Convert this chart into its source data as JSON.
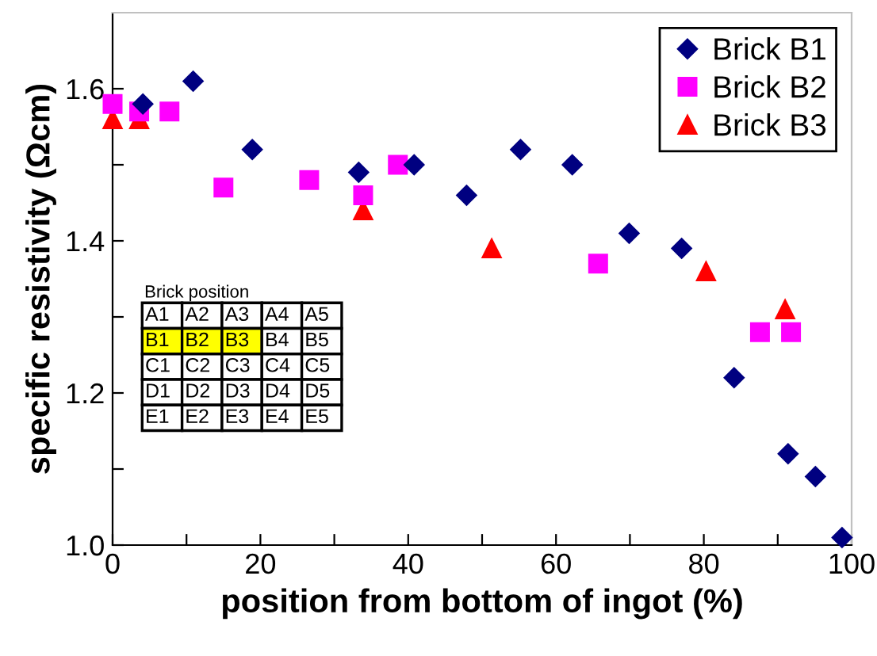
{
  "chart_data": {
    "type": "scatter",
    "xlabel": "position from bottom of ingot (%)",
    "ylabel": "specific resistivity (Ωcm)",
    "series": [
      {
        "name": "Brick B1",
        "color": "#000080",
        "marker": "diamond",
        "x": [
          4.1,
          10.9,
          18.9,
          33.3,
          40.8,
          47.9,
          55.2,
          62.2,
          69.9,
          77.0,
          84.1,
          91.4,
          95.1,
          98.7
        ],
        "values": [
          1.58,
          1.61,
          1.52,
          1.49,
          1.5,
          1.46,
          1.52,
          1.5,
          1.41,
          1.39,
          1.22,
          1.12,
          1.09,
          1.01
        ]
      },
      {
        "name": "Brick B2",
        "color": "#ff00ff",
        "marker": "square",
        "x": [
          0,
          3.6,
          7.7,
          15.0,
          26.6,
          33.9,
          38.6,
          65.7,
          87.6,
          91.8
        ],
        "values": [
          1.58,
          1.57,
          1.57,
          1.47,
          1.48,
          1.46,
          1.5,
          1.37,
          1.28,
          1.28
        ]
      },
      {
        "name": "Brick B3",
        "color": "#ff0000",
        "marker": "triangle",
        "x": [
          0,
          3.6,
          33.9,
          51.3,
          80.3,
          91.0
        ],
        "values": [
          1.56,
          1.56,
          1.44,
          1.39,
          1.36,
          1.31
        ]
      }
    ],
    "xlim": [
      0,
      100
    ],
    "xticks": [
      0,
      {
        "value": 10,
        "label": null
      },
      20,
      {
        "value": 30,
        "label": null
      },
      40,
      {
        "value": 50,
        "label": null
      },
      60,
      {
        "value": 70,
        "label": null
      },
      80,
      {
        "value": 90,
        "label": null
      },
      100
    ],
    "ylim": [
      1.0,
      1.7
    ],
    "yticks": [
      {
        "value": 1.0,
        "label": "1.0"
      },
      {
        "value": 1.1,
        "label": null
      },
      {
        "value": 1.2,
        "label": "1.2"
      },
      {
        "value": 1.3,
        "label": null
      },
      {
        "value": 1.4,
        "label": "1.4"
      },
      {
        "value": 1.5,
        "label": null
      },
      {
        "value": 1.6,
        "label": "1.6"
      }
    ],
    "grid": false,
    "legend": "top right",
    "annotations": [
      "Brick position",
      "A1",
      "A2",
      "A3",
      "A4",
      "A5",
      "B1",
      "B2",
      "B3",
      "B4",
      "B5",
      "C1",
      "C2",
      "C3",
      "C4",
      "C5",
      "D1",
      "D2",
      "D3",
      "D4",
      "D5",
      "E1",
      "E2",
      "E3",
      "E4",
      "E5"
    ]
  }
}
